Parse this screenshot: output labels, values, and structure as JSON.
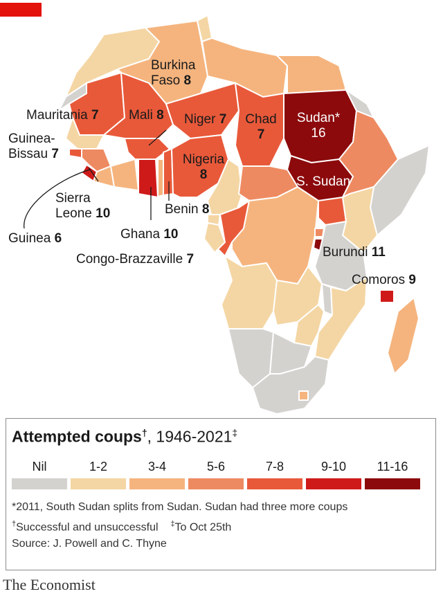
{
  "title": {
    "bold": "Attempted coups",
    "bold_mark": "†",
    "rest": ", 1946-2021",
    "rest_mark": "‡"
  },
  "legend": {
    "bins": [
      {
        "label": "Nil",
        "color": "#d4d2cf"
      },
      {
        "label": "1-2",
        "color": "#f4d6a4"
      },
      {
        "label": "3-4",
        "color": "#f5b47e"
      },
      {
        "label": "5-6",
        "color": "#ee8a61"
      },
      {
        "label": "7-8",
        "color": "#e8593a"
      },
      {
        "label": "9-10",
        "color": "#cf1a1a"
      },
      {
        "label": "11-16",
        "color": "#8c0a0c"
      }
    ]
  },
  "labels": {
    "burkina_faso": {
      "name": "Burkina\nFaso",
      "value": "8"
    },
    "mauritania": {
      "name": "Mauritania",
      "value": "7"
    },
    "mali": {
      "name": "Mali",
      "value": "8"
    },
    "niger": {
      "name": "Niger",
      "value": "7"
    },
    "chad": {
      "name": "Chad",
      "value": "7"
    },
    "sudan": {
      "name": "Sudan*",
      "value": "16"
    },
    "south_sudan": {
      "name": "S. Sudan",
      "value": ""
    },
    "guinea_bissau": {
      "name": "Guinea-\nBissau",
      "value": "7"
    },
    "nigeria": {
      "name": "Nigeria",
      "value": "8"
    },
    "sierra_leone": {
      "name": "Sierra\nLeone",
      "value": "10"
    },
    "benin": {
      "name": "Benin",
      "value": "8"
    },
    "guinea": {
      "name": "Guinea",
      "value": "6"
    },
    "ghana": {
      "name": "Ghana",
      "value": "10"
    },
    "congo_brazzaville": {
      "name": "Congo-Brazzaville",
      "value": "7"
    },
    "burundi": {
      "name": "Burundi",
      "value": "11"
    },
    "comoros": {
      "name": "Comoros",
      "value": "9"
    }
  },
  "notes": {
    "line1": "*2011, South Sudan splits from Sudan. Sudan had three more coups",
    "line2a_mark": "†",
    "line2a": "Successful and unsuccessful",
    "line2b_mark": "‡",
    "line2b": "To Oct 25th",
    "line3": "Source: J. Powell and C. Thyne"
  },
  "brand": "The Economist"
}
